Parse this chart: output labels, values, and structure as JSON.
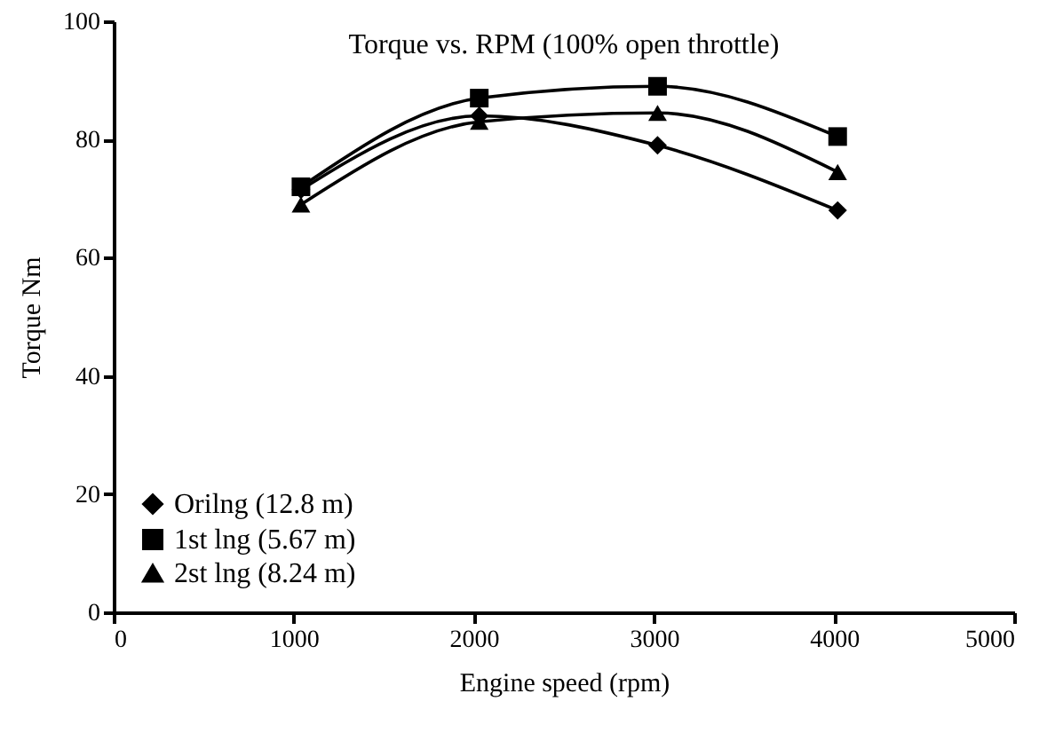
{
  "chart_data": {
    "type": "line",
    "title": "Torque vs. RPM (100% open throttle)",
    "xlabel": "Engine speed (rpm)",
    "ylabel": "Torque Nm",
    "x": [
      1040,
      2030,
      3020,
      4020
    ],
    "series": [
      {
        "name": "Orilng (12.8 m)",
        "color": "#000000",
        "marker": "diamond",
        "values": [
          71.5,
          84,
          79,
          68
        ]
      },
      {
        "name": "1st lng (5.67 m)",
        "color": "#000000",
        "marker": "square",
        "values": [
          72,
          87,
          89,
          80.5
        ]
      },
      {
        "name": "2st lng (8.24 m)",
        "color": "#000000",
        "marker": "triangle",
        "values": [
          69,
          83,
          84.5,
          74.5
        ]
      }
    ],
    "xlim": [
      0,
      5000
    ],
    "xticks": [
      0,
      1000,
      2000,
      3000,
      4000,
      5000
    ],
    "ylim": [
      0,
      100
    ],
    "yticks": [
      0,
      20,
      40,
      60,
      80,
      100
    ],
    "grid": false,
    "legend": "bottom left",
    "line_style": "solid"
  }
}
